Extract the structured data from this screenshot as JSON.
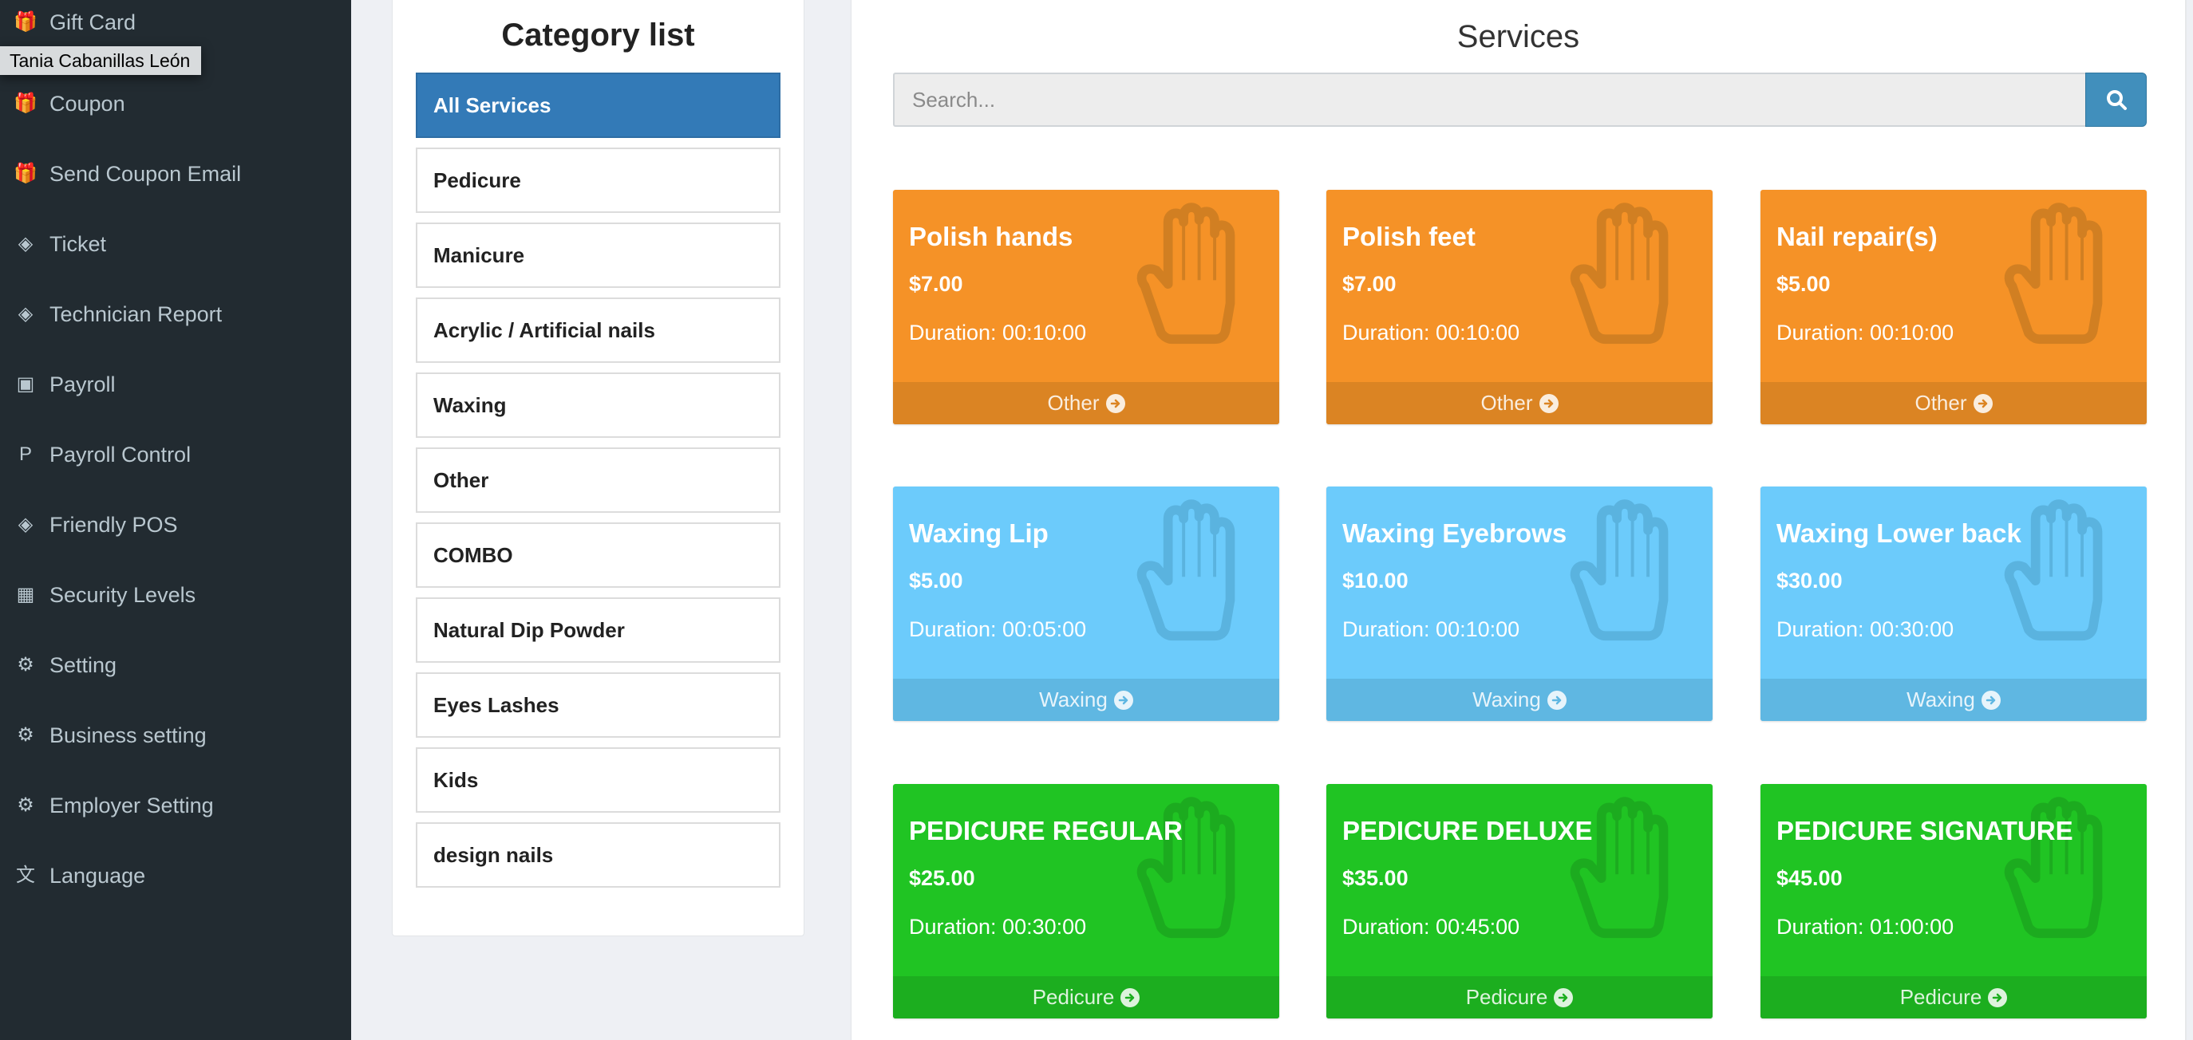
{
  "tooltip": "Tania Cabanillas León",
  "sidebar": {
    "items": [
      {
        "label": "Gift Card",
        "icon": "gift-icon",
        "glyph": "🎁"
      },
      {
        "label": "Coupon",
        "icon": "gift-icon",
        "glyph": "🎁"
      },
      {
        "label": "Send Coupon Email",
        "icon": "gift-icon",
        "glyph": "🎁"
      },
      {
        "label": "Ticket",
        "icon": "ticket-icon",
        "glyph": "◈"
      },
      {
        "label": "Technician Report",
        "icon": "ticket-icon",
        "glyph": "◈"
      },
      {
        "label": "Payroll",
        "icon": "money-icon",
        "glyph": "▣"
      },
      {
        "label": "Payroll Control",
        "icon": "paypal-icon",
        "glyph": "P"
      },
      {
        "label": "Friendly POS",
        "icon": "ticket-icon",
        "glyph": "◈"
      },
      {
        "label": "Security Levels",
        "icon": "calendar-icon",
        "glyph": "▦"
      },
      {
        "label": "Setting",
        "icon": "gear-icon",
        "glyph": "⚙"
      },
      {
        "label": "Business setting",
        "icon": "gear-icon",
        "glyph": "⚙"
      },
      {
        "label": "Employer Setting",
        "icon": "gear-icon",
        "glyph": "⚙"
      },
      {
        "label": "Language",
        "icon": "language-icon",
        "glyph": "⽂"
      }
    ]
  },
  "categories": {
    "title": "Category list",
    "items": [
      "All Services",
      "Pedicure",
      "Manicure",
      "Acrylic / Artificial nails",
      "Waxing",
      "Other",
      "COMBO",
      "Natural Dip Powder",
      "Eyes Lashes",
      "Kids",
      "design nails"
    ],
    "active": "All Services"
  },
  "services": {
    "title": "Services",
    "search_placeholder": "Search...",
    "colors": {
      "Other": [
        "#f59227",
        "#db8423",
        "#d17f22"
      ],
      "Waxing": [
        "#6ccbfb",
        "#5fb7e2",
        "#5ab3df"
      ],
      "Pedicure": [
        "#20c423",
        "#1cae1f",
        "#1cab1f"
      ]
    },
    "cards": [
      {
        "name": "Polish hands",
        "price": "$7.00",
        "duration": "Duration: 00:10:00",
        "category": "Other"
      },
      {
        "name": "Polish feet",
        "price": "$7.00",
        "duration": "Duration: 00:10:00",
        "category": "Other"
      },
      {
        "name": "Nail repair(s)",
        "price": "$5.00",
        "duration": "Duration: 00:10:00",
        "category": "Other"
      },
      {
        "name": "Waxing Lip",
        "price": "$5.00",
        "duration": "Duration: 00:05:00",
        "category": "Waxing"
      },
      {
        "name": "Waxing Eyebrows",
        "price": "$10.00",
        "duration": "Duration: 00:10:00",
        "category": "Waxing"
      },
      {
        "name": "Waxing Lower back",
        "price": "$30.00",
        "duration": "Duration: 00:30:00",
        "category": "Waxing"
      },
      {
        "name": "PEDICURE REGULAR",
        "price": "$25.00",
        "duration": "Duration: 00:30:00",
        "category": "Pedicure"
      },
      {
        "name": "PEDICURE DELUXE",
        "price": "$35.00",
        "duration": "Duration: 00:45:00",
        "category": "Pedicure"
      },
      {
        "name": "PEDICURE SIGNATURE",
        "price": "$45.00",
        "duration": "Duration: 01:00:00",
        "category": "Pedicure"
      }
    ]
  }
}
